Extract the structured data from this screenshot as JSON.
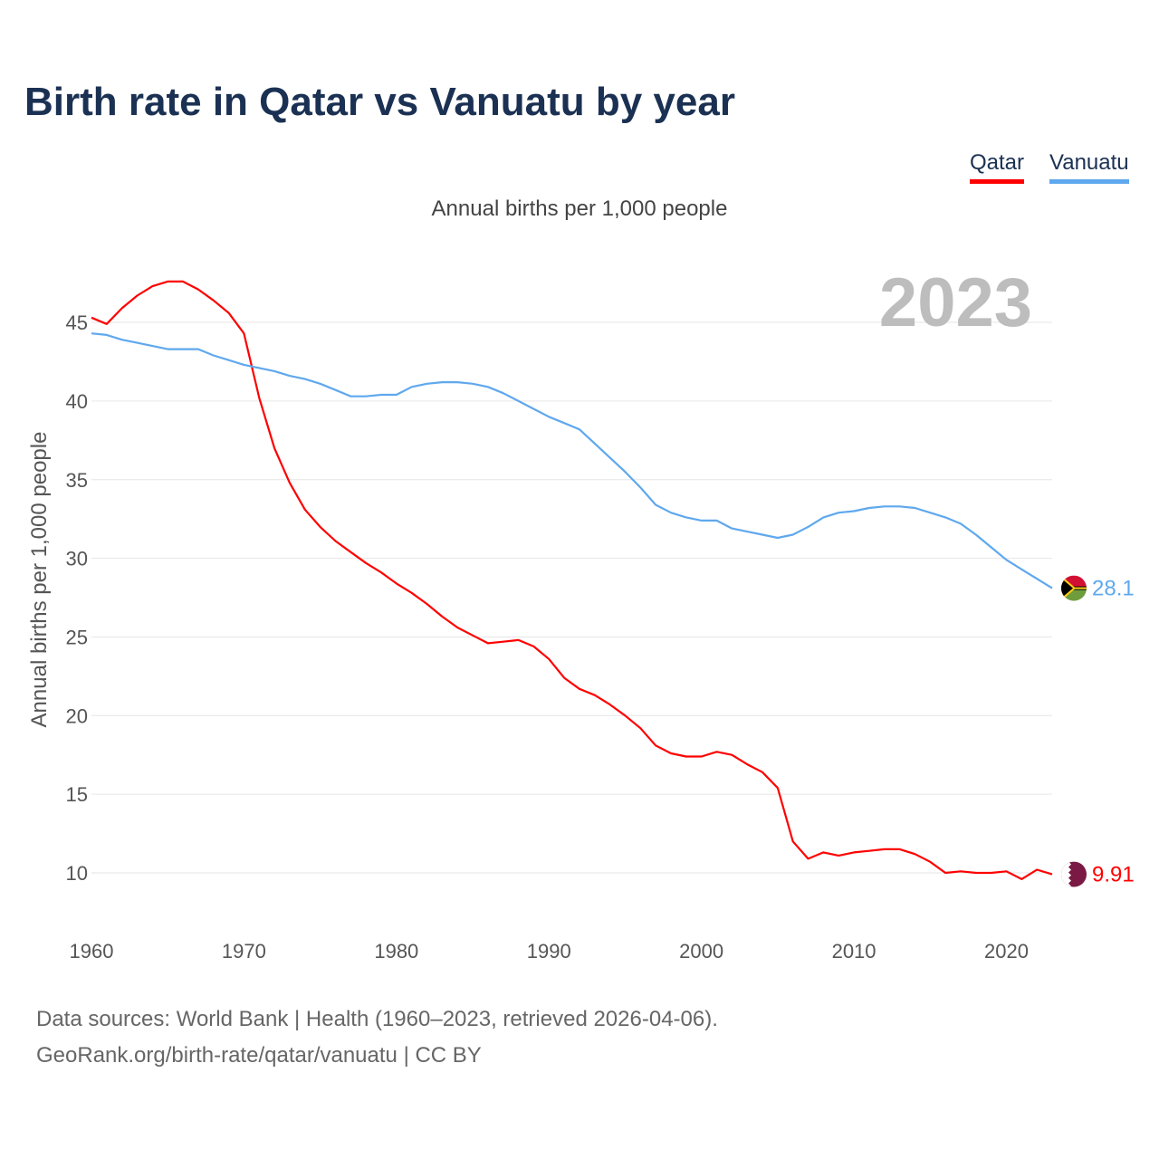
{
  "title": "Birth rate in Qatar vs Vanuatu by year",
  "legend": {
    "qatar": "Qatar",
    "vanuatu": "Vanuatu"
  },
  "subtitle": "Annual births per 1,000 people",
  "footer": {
    "line1": "Data sources: World Bank | Health (1960–2023, retrieved 2026-04-06).",
    "line2": "GeoRank.org/birth-rate/qatar/vanuatu | CC BY"
  },
  "colors": {
    "qatar": "#ff0000",
    "vanuatu": "#5fa8ee",
    "year": "#bdbdbd",
    "grid": "#e6e6e6"
  },
  "chart_data": {
    "type": "line",
    "title": "Birth rate in Qatar vs Vanuatu by year",
    "ylabel": "Annual births per 1,000 people",
    "xlabel": "",
    "year_label": "2023",
    "xlim": [
      1960,
      2023
    ],
    "ylim": [
      7,
      48
    ],
    "yticks": [
      10,
      15,
      20,
      25,
      30,
      35,
      40,
      45
    ],
    "xticks": [
      1960,
      1970,
      1980,
      1990,
      2000,
      2010,
      2020
    ],
    "grid": true,
    "legend_position": "top-right",
    "series": [
      {
        "name": "Qatar",
        "end_label": "9.91",
        "start_year": 1960,
        "values": [
          45.3,
          44.9,
          45.9,
          46.7,
          47.3,
          47.6,
          47.6,
          47.1,
          46.4,
          45.6,
          44.3,
          40.2,
          37.0,
          34.8,
          33.1,
          32.0,
          31.1,
          30.4,
          29.7,
          29.1,
          28.4,
          27.8,
          27.1,
          26.3,
          25.6,
          25.1,
          24.6,
          24.7,
          24.8,
          24.4,
          23.6,
          22.4,
          21.7,
          21.3,
          20.7,
          20.0,
          19.2,
          18.1,
          17.6,
          17.4,
          17.4,
          17.7,
          17.5,
          16.9,
          16.4,
          15.4,
          12.0,
          10.9,
          11.3,
          11.1,
          11.3,
          11.4,
          11.5,
          11.5,
          11.2,
          10.7,
          10.0,
          10.1,
          10.0,
          10.0,
          10.1,
          9.6,
          10.2,
          9.91
        ]
      },
      {
        "name": "Vanuatu",
        "end_label": "28.1",
        "start_year": 1960,
        "values": [
          44.3,
          44.2,
          43.9,
          43.7,
          43.5,
          43.3,
          43.3,
          43.3,
          42.9,
          42.6,
          42.3,
          42.1,
          41.9,
          41.6,
          41.4,
          41.1,
          40.7,
          40.3,
          40.3,
          40.4,
          40.4,
          40.9,
          41.1,
          41.2,
          41.2,
          41.1,
          40.9,
          40.5,
          40.0,
          39.5,
          39.0,
          38.6,
          38.2,
          37.3,
          36.4,
          35.5,
          34.5,
          33.4,
          32.9,
          32.6,
          32.4,
          32.4,
          31.9,
          31.7,
          31.5,
          31.3,
          31.5,
          32.0,
          32.6,
          32.9,
          33.0,
          33.2,
          33.3,
          33.3,
          33.2,
          32.9,
          32.6,
          32.2,
          31.5,
          30.7,
          29.9,
          29.3,
          28.7,
          28.1
        ]
      }
    ]
  }
}
